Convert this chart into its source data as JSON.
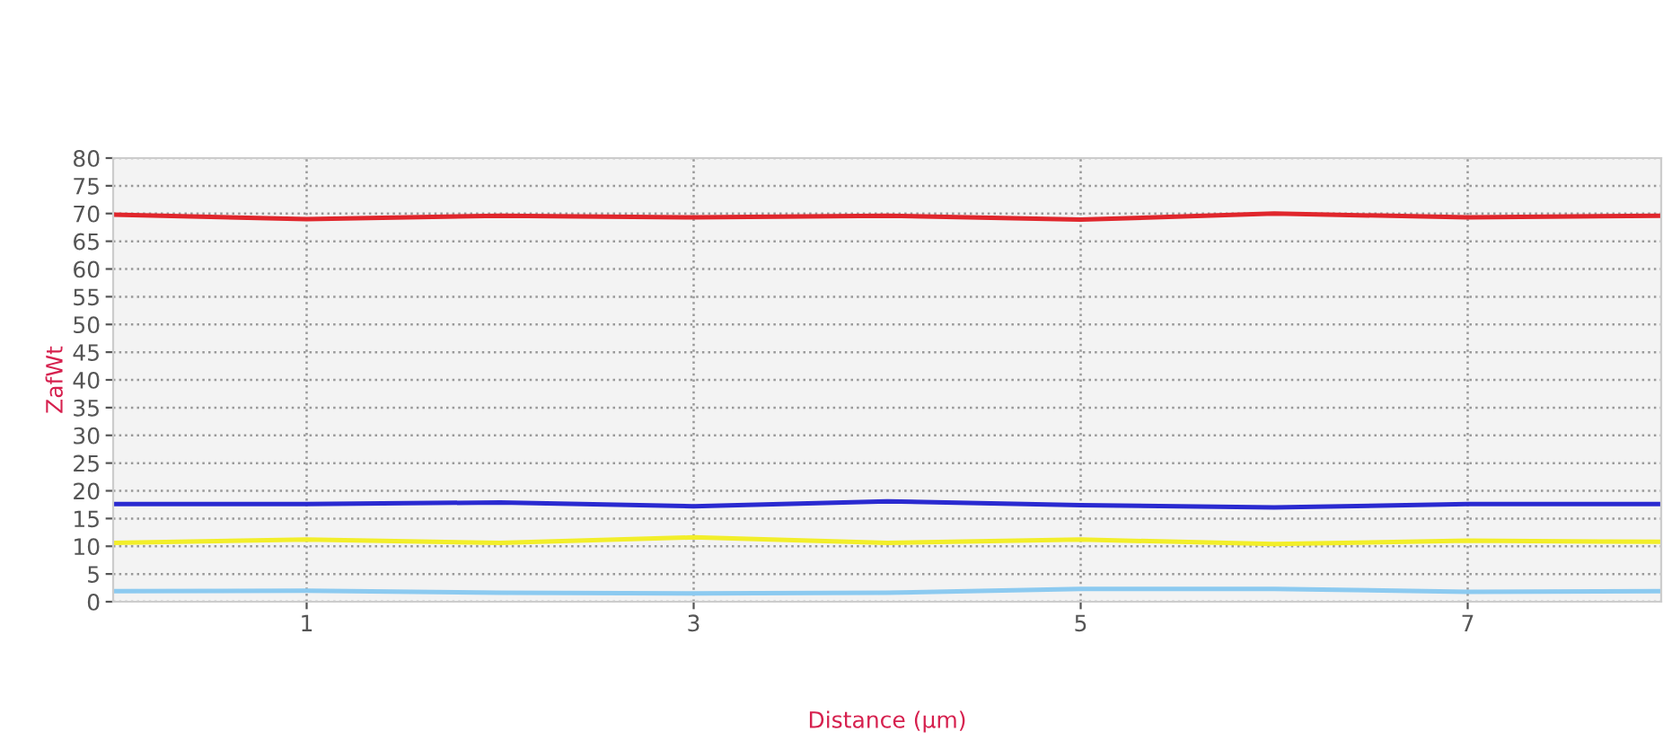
{
  "chart_data": {
    "type": "line",
    "xlabel": "Distance (µm)",
    "ylabel": "ZafWt",
    "x": [
      0,
      1,
      2,
      3,
      4,
      5,
      6,
      7,
      8
    ],
    "xlim": [
      0,
      8
    ],
    "xticks": [
      1,
      3,
      5,
      7
    ],
    "ylim": [
      0,
      80
    ],
    "yticks": [
      0,
      5,
      10,
      15,
      20,
      25,
      30,
      35,
      40,
      45,
      50,
      55,
      60,
      65,
      70,
      75,
      80
    ],
    "grid": true,
    "marker": "none",
    "line_style": "solid",
    "series": [
      {
        "color": "#e0262c",
        "values": [
          69.8,
          69.0,
          69.6,
          69.3,
          69.6,
          68.9,
          70.0,
          69.3,
          69.6
        ]
      },
      {
        "color": "#2a2ad0",
        "values": [
          17.6,
          17.6,
          17.9,
          17.2,
          18.1,
          17.4,
          17.0,
          17.6,
          17.6
        ]
      },
      {
        "color": "#f2ee2a",
        "values": [
          10.6,
          11.2,
          10.6,
          11.6,
          10.6,
          11.2,
          10.4,
          11.0,
          10.8
        ]
      },
      {
        "color": "#8ccaf0",
        "values": [
          1.9,
          2.0,
          1.6,
          1.5,
          1.6,
          2.3,
          2.3,
          1.8,
          1.9
        ]
      }
    ]
  }
}
